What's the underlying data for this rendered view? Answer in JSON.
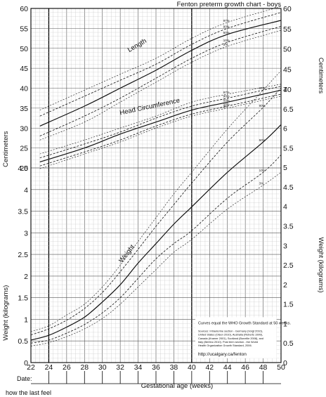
{
  "chart_data": {
    "type": "line",
    "title": "Fenton preterm growth chart - boys",
    "xlabel": "Gestational age (weeks)",
    "x_range": [
      22,
      50
    ],
    "x_ticks": [
      22,
      24,
      26,
      28,
      30,
      32,
      34,
      36,
      38,
      40,
      42,
      44,
      46,
      48,
      50
    ],
    "left_cm_axis": {
      "label": "Centimeters",
      "range": [
        20,
        60
      ],
      "ticks": [
        20,
        25,
        30,
        35,
        40,
        45,
        50,
        55,
        60
      ]
    },
    "right_cm_axis": {
      "label": "Centimeters",
      "range": [
        40,
        60
      ],
      "ticks": [
        40,
        45,
        50,
        55,
        60
      ]
    },
    "left_weight_axis": {
      "label": "Weight (kilograms)",
      "range": [
        0,
        4.5
      ],
      "ticks": [
        0,
        0.5,
        1,
        1.5,
        2,
        2.5,
        3,
        3.5,
        4,
        4.5
      ]
    },
    "right_weight_axis": {
      "label": "Weight (kilograms)",
      "range": [
        0,
        7
      ],
      "ticks": [
        0,
        0.5,
        1,
        1.5,
        2,
        2.5,
        3,
        3.5,
        4,
        4.5,
        5,
        5.5,
        6,
        6.5,
        7
      ]
    },
    "groups": [
      {
        "name": "Length",
        "unit": "cm",
        "ages": [
          23,
          28,
          32,
          36,
          40,
          44,
          50
        ],
        "percentiles": [
          {
            "p": "97",
            "values": [
              34.5,
              39.5,
              43.5,
              47.5,
              52.5,
              56.5,
              60.5
            ]
          },
          {
            "p": "90",
            "values": [
              33.0,
              38.0,
              42.0,
              46.0,
              51.0,
              55.0,
              59.0
            ]
          },
          {
            "p": "50",
            "values": [
              30.5,
              35.5,
              40.0,
              44.5,
              49.5,
              53.5,
              57.0
            ]
          },
          {
            "p": "10",
            "values": [
              28.0,
              33.0,
              37.5,
              42.5,
              47.5,
              51.5,
              55.5
            ]
          },
          {
            "p": "3",
            "values": [
              27.0,
              31.5,
              36.5,
              41.5,
              46.5,
              50.5,
              54.5
            ]
          }
        ]
      },
      {
        "name": "Head Circumference",
        "unit": "cm",
        "ages": [
          23,
          28,
          32,
          36,
          40,
          44,
          50
        ],
        "percentiles": [
          {
            "p": "97",
            "values": [
              23.5,
              27.0,
              30.0,
              33.0,
              36.5,
              38.5,
              41.0
            ]
          },
          {
            "p": "90",
            "values": [
              22.5,
              26.0,
              29.0,
              32.5,
              35.5,
              37.5,
              40.5
            ]
          },
          {
            "p": "50",
            "values": [
              21.5,
              25.0,
              28.5,
              31.5,
              34.5,
              36.5,
              39.5
            ]
          },
          {
            "p": "10",
            "values": [
              20.5,
              24.0,
              27.0,
              30.5,
              33.5,
              35.5,
              38.5
            ]
          },
          {
            "p": "3",
            "values": [
              19.8,
              23.5,
              26.5,
              30.0,
              33.0,
              35.0,
              38.0
            ]
          }
        ]
      },
      {
        "name": "Weight",
        "unit": "kg",
        "ages": [
          22,
          24,
          26,
          28,
          30,
          32,
          34,
          36,
          38,
          40,
          44,
          48,
          50
        ],
        "percentiles": [
          {
            "p": "97",
            "values": [
              0.72,
              0.85,
              1.1,
              1.35,
              1.75,
              2.25,
              2.8,
              3.35,
              3.9,
              4.4,
              5.4,
              6.3,
              6.75
            ]
          },
          {
            "p": "90",
            "values": [
              0.64,
              0.78,
              0.98,
              1.25,
              1.62,
              2.1,
              2.62,
              3.15,
              3.65,
              4.15,
              5.1,
              5.9,
              6.35
            ]
          },
          {
            "p": "50",
            "values": [
              0.52,
              0.63,
              0.82,
              1.05,
              1.4,
              1.8,
              2.3,
              2.75,
              3.2,
              3.6,
              4.4,
              5.1,
              5.5
            ]
          },
          {
            "p": "10",
            "values": [
              0.45,
              0.52,
              0.68,
              0.88,
              1.15,
              1.5,
              1.95,
              2.4,
              2.75,
              3.05,
              3.8,
              4.4,
              4.8
            ]
          },
          {
            "p": "3",
            "values": [
              0.38,
              0.46,
              0.6,
              0.78,
              1.02,
              1.35,
              1.75,
              2.15,
              2.55,
              2.85,
              3.55,
              4.1,
              4.4
            ]
          }
        ]
      }
    ],
    "grid": true,
    "note_title": "Curves equal the WHO Growth Standard at 50 weeks.",
    "note_sources": "Sources: Intrauterine section - Germany (Voigt 2010), United States (Olsen 2010), Australia (Roberts 1999), Canada (Kramer 2001), Scotland (Bonellie 2008), and Italy (Bertino 2010). Post term section - the World Health Organization Growth Standard, 2006.",
    "note_url": "http://ucalgary.ca/fenton",
    "date_label": "Date:",
    "footer": "how the last feel"
  }
}
